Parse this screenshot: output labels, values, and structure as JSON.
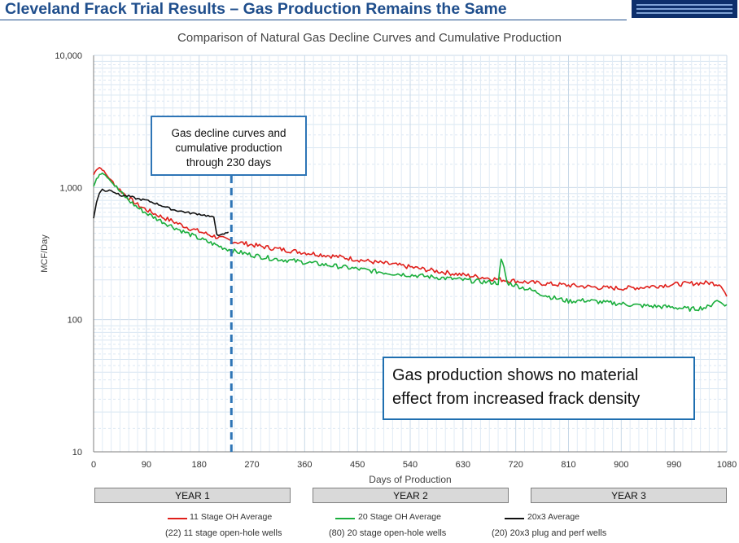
{
  "slide": {
    "title": "Cleveland Frack Trial Results – Gas Production Remains the Same"
  },
  "logo": {
    "name": "company-logo"
  },
  "callouts": {
    "window_line1": "Gas decline curves and",
    "window_line2": "cumulative production",
    "window_line3": "through 230 days",
    "conclusion_line1": "Gas production shows no material",
    "conclusion_line2": "effect from increased frack density"
  },
  "years": [
    "YEAR 1",
    "YEAR 2",
    "YEAR 3"
  ],
  "legend": [
    {
      "label": "11 Stage OH Average",
      "note": "(22) 11 stage open-hole wells",
      "color": "#e0201b"
    },
    {
      "label": "20 Stage OH Average",
      "note": "(80) 20 stage open-hole wells",
      "color": "#1aae3c"
    },
    {
      "label": "20x3 Average",
      "note": "(20) 20x3 plug and perf wells",
      "color": "#111111"
    }
  ],
  "chart_data": {
    "type": "line",
    "title": "Comparison of Natural Gas Decline Curves and Cumulative Production",
    "xlabel": "Days of Production",
    "ylabel": "MCF/Day",
    "xlim": [
      0,
      1080
    ],
    "ylim": [
      10,
      10000
    ],
    "yscale": "log",
    "x_ticks": [
      "0",
      "90",
      "180",
      "270",
      "360",
      "450",
      "540",
      "630",
      "720",
      "810",
      "900",
      "990",
      "1080"
    ],
    "y_ticks": [
      "10",
      "100",
      "1,000",
      "10,000"
    ],
    "grid": true,
    "vertical_marker_x": 235,
    "series": [
      {
        "name": "11 Stage OH Average",
        "color": "#e0201b",
        "x": [
          0,
          5,
          10,
          15,
          20,
          30,
          45,
          60,
          75,
          90,
          105,
          120,
          135,
          150,
          165,
          180,
          200,
          220,
          240,
          260,
          280,
          300,
          330,
          360,
          390,
          420,
          450,
          480,
          510,
          540,
          570,
          600,
          630,
          660,
          690,
          720,
          750,
          780,
          810,
          840,
          870,
          900,
          930,
          960,
          990,
          1020,
          1050,
          1070,
          1080
        ],
        "y": [
          1250,
          1380,
          1420,
          1370,
          1280,
          1130,
          960,
          830,
          740,
          680,
          630,
          590,
          555,
          520,
          490,
          465,
          435,
          410,
          390,
          375,
          362,
          350,
          335,
          322,
          310,
          298,
          285,
          272,
          262,
          250,
          238,
          228,
          218,
          210,
          202,
          196,
          190,
          186,
          182,
          178,
          174,
          173,
          175,
          180,
          185,
          188,
          190,
          185,
          150
        ]
      },
      {
        "name": "20 Stage OH Average",
        "color": "#1aae3c",
        "x": [
          0,
          5,
          10,
          15,
          20,
          30,
          45,
          60,
          75,
          90,
          105,
          120,
          135,
          150,
          165,
          180,
          200,
          220,
          240,
          260,
          280,
          300,
          330,
          360,
          390,
          420,
          450,
          480,
          510,
          540,
          570,
          600,
          630,
          660,
          690,
          695,
          700,
          705,
          720,
          750,
          780,
          810,
          840,
          870,
          900,
          930,
          960,
          990,
          1020,
          1050,
          1060,
          1070,
          1080
        ],
        "y": [
          1020,
          1150,
          1260,
          1300,
          1250,
          1120,
          930,
          800,
          705,
          640,
          590,
          545,
          505,
          470,
          440,
          412,
          380,
          352,
          330,
          315,
          303,
          292,
          282,
          272,
          262,
          252,
          242,
          232,
          224,
          218,
          212,
          206,
          200,
          194,
          190,
          280,
          250,
          190,
          182,
          165,
          148,
          138,
          140,
          135,
          132,
          128,
          126,
          124,
          120,
          125,
          140,
          135,
          130
        ]
      },
      {
        "name": "20x3 Average",
        "color": "#111111",
        "x": [
          0,
          5,
          10,
          15,
          20,
          30,
          45,
          60,
          75,
          90,
          105,
          120,
          135,
          150,
          165,
          180,
          195,
          205,
          210,
          215,
          220,
          225,
          230
        ],
        "y": [
          580,
          780,
          900,
          980,
          940,
          960,
          870,
          860,
          820,
          800,
          760,
          720,
          680,
          660,
          640,
          630,
          610,
          590,
          450,
          430,
          440,
          450,
          460
        ]
      }
    ]
  }
}
